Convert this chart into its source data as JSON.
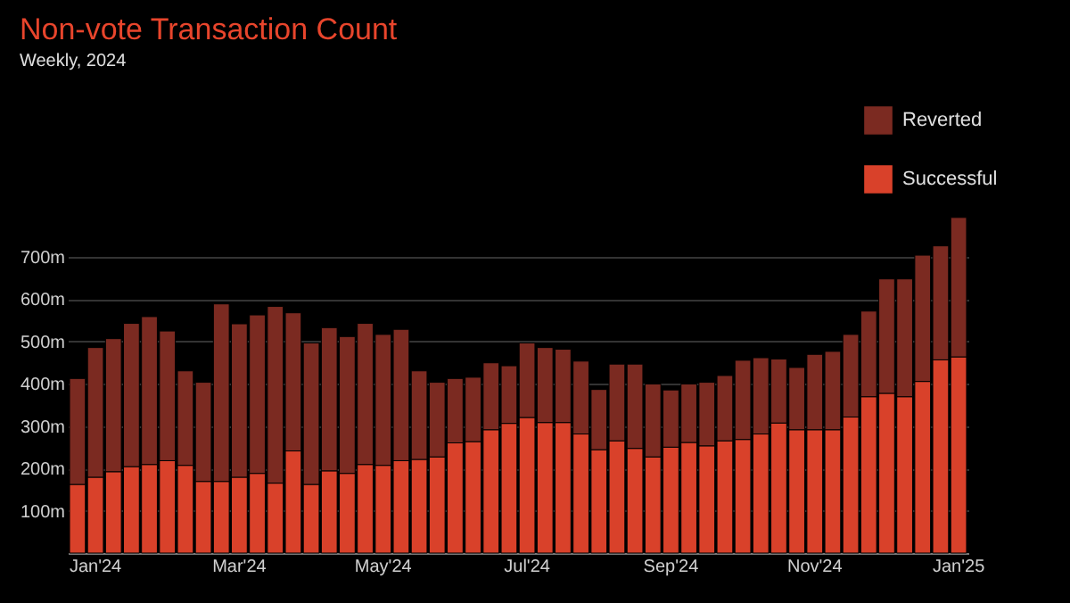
{
  "chart_data": {
    "type": "bar",
    "title": "Non-vote Transaction Count",
    "subtitle": "Weekly, 2024",
    "categories": [
      null,
      "Jan'24",
      null,
      null,
      null,
      null,
      null,
      null,
      null,
      "Mar'24",
      null,
      null,
      null,
      null,
      null,
      null,
      null,
      "May'24",
      null,
      null,
      null,
      null,
      null,
      null,
      null,
      "Jul'24",
      null,
      null,
      null,
      null,
      null,
      null,
      null,
      "Sep'24",
      null,
      null,
      null,
      null,
      null,
      null,
      null,
      "Nov'24",
      null,
      null,
      null,
      null,
      null,
      null,
      null,
      "Jan'25"
    ],
    "series": [
      {
        "name": "Successful",
        "color": "#d9412a",
        "values": [
          162,
          179,
          192,
          204,
          209,
          218,
          207,
          169,
          169,
          179,
          188,
          165,
          241,
          162,
          194,
          188,
          209,
          207,
          218,
          221,
          227,
          260,
          263,
          291,
          306,
          320,
          308,
          308,
          281,
          244,
          265,
          247,
          227,
          250,
          261,
          253,
          265,
          268,
          281,
          307,
          291,
          291,
          291,
          321,
          369,
          377,
          369,
          405,
          456,
          463
        ]
      },
      {
        "name": "Reverted",
        "color": "#7b2a21",
        "values": [
          250,
          306,
          314,
          338,
          349,
          306,
          223,
          234,
          419,
          362,
          374,
          417,
          326,
          334,
          338,
          323,
          333,
          309,
          310,
          209,
          176,
          152,
          152,
          158,
          136,
          176,
          177,
          173,
          172,
          142,
          181,
          199,
          172,
          135,
          138,
          150,
          154,
          187,
          180,
          151,
          147,
          178,
          185,
          195,
          202,
          270,
          278,
          298,
          269,
          329
        ]
      }
    ],
    "stacked": true,
    "ylim": [
      0,
      800
    ],
    "yticks": [
      {
        "value": 100,
        "label": "100m"
      },
      {
        "value": 200,
        "label": "200m"
      },
      {
        "value": 300,
        "label": "300m"
      },
      {
        "value": 400,
        "label": "400m"
      },
      {
        "value": 500,
        "label": "500m"
      },
      {
        "value": 600,
        "label": "600m"
      },
      {
        "value": 700,
        "label": "700m"
      }
    ],
    "grid": "y",
    "legend": "top right"
  }
}
